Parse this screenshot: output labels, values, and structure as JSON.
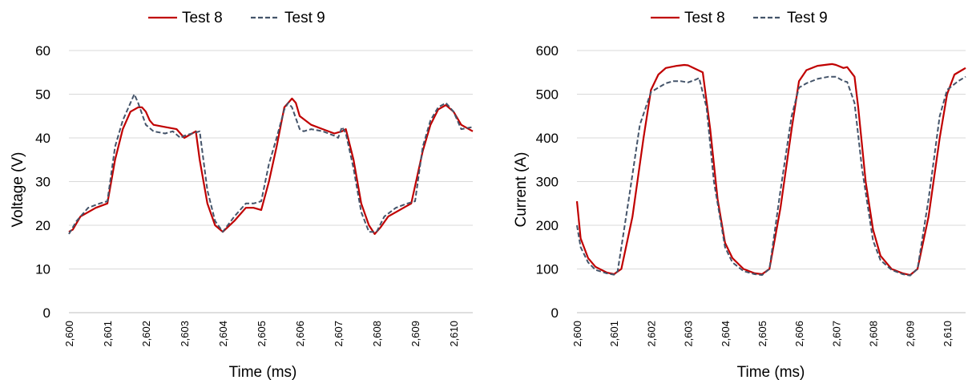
{
  "chart_data": [
    {
      "type": "line",
      "title": "",
      "xlabel": "Time (ms)",
      "ylabel": "Voltage (V)",
      "xlim": [
        2600,
        2610.5
      ],
      "ylim": [
        0,
        60
      ],
      "yticks": [
        "0",
        "10",
        "20",
        "30",
        "40",
        "50",
        "60"
      ],
      "xticks": [
        "2,600",
        "2,601",
        "2,602",
        "2,603",
        "2,604",
        "2,605",
        "2,606",
        "2,607",
        "2,608",
        "2,609",
        "2,610"
      ],
      "grid": true,
      "legend": "top-center",
      "series": [
        {
          "name": "Test 8",
          "color": "#c00000",
          "style": "solid",
          "x": [
            2600.0,
            2600.1,
            2600.3,
            2600.7,
            2601.0,
            2601.2,
            2601.4,
            2601.6,
            2601.8,
            2601.9,
            2602.0,
            2602.1,
            2602.2,
            2602.5,
            2602.8,
            2603.0,
            2603.2,
            2603.3,
            2603.4,
            2603.6,
            2603.8,
            2604.0,
            2604.3,
            2604.6,
            2604.8,
            2605.0,
            2605.2,
            2605.4,
            2605.6,
            2605.8,
            2605.9,
            2606.0,
            2606.3,
            2606.6,
            2606.9,
            2607.1,
            2607.2,
            2607.4,
            2607.6,
            2607.8,
            2607.95,
            2608.1,
            2608.3,
            2608.6,
            2608.9,
            2609.2,
            2609.4,
            2609.6,
            2609.8,
            2610.0,
            2610.2,
            2610.4,
            2610.5
          ],
          "y": [
            18.5,
            19,
            22,
            24,
            25,
            35,
            42,
            46,
            47,
            47,
            46,
            44,
            43,
            42.5,
            42,
            40,
            41,
            41.5,
            35,
            25,
            20,
            18.5,
            21,
            24,
            24,
            23.5,
            30,
            38,
            47,
            49,
            48,
            45,
            43,
            42,
            41,
            41.5,
            42,
            35,
            25,
            20,
            18,
            19.5,
            22,
            23.5,
            25,
            37,
            43,
            46.5,
            47.5,
            46,
            43,
            42,
            41.5
          ]
        },
        {
          "name": "Test 9",
          "color": "#44546a",
          "style": "dashed",
          "x": [
            2600.0,
            2600.2,
            2600.5,
            2600.8,
            2601.0,
            2601.2,
            2601.4,
            2601.6,
            2601.7,
            2601.8,
            2602.0,
            2602.2,
            2602.5,
            2602.7,
            2602.9,
            2603.0,
            2603.2,
            2603.4,
            2603.6,
            2603.8,
            2604.0,
            2604.3,
            2604.6,
            2604.8,
            2605.0,
            2605.2,
            2605.4,
            2605.6,
            2605.7,
            2605.8,
            2606.0,
            2606.1,
            2606.3,
            2606.6,
            2606.9,
            2607.0,
            2607.1,
            2607.2,
            2607.4,
            2607.6,
            2607.8,
            2608.0,
            2608.2,
            2608.5,
            2608.8,
            2609.0,
            2609.2,
            2609.4,
            2609.6,
            2609.8,
            2610.0,
            2610.2,
            2610.5
          ],
          "y": [
            18,
            21,
            24,
            25,
            25.5,
            38,
            44,
            48,
            50,
            48,
            43,
            41.5,
            41,
            41.5,
            40,
            40.5,
            41,
            41.5,
            28,
            21,
            18.5,
            22,
            25,
            25,
            25.5,
            34,
            40,
            46.5,
            48,
            47,
            42,
            41.5,
            42,
            41.5,
            40.5,
            40,
            42.5,
            41,
            33,
            23,
            18.5,
            18.5,
            22,
            24,
            25,
            25.5,
            38,
            44,
            47,
            48,
            46,
            42,
            42.5
          ]
        }
      ]
    },
    {
      "type": "line",
      "title": "",
      "xlabel": "Time (ms)",
      "ylabel": "Current (A)",
      "xlim": [
        2600,
        2610.5
      ],
      "ylim": [
        0,
        600
      ],
      "yticks": [
        "0",
        "100",
        "200",
        "300",
        "400",
        "500",
        "600"
      ],
      "xticks": [
        "2,600",
        "2,601",
        "2,602",
        "2,603",
        "2,604",
        "2,605",
        "2,606",
        "2,607",
        "2,608",
        "2,609",
        "2,610"
      ],
      "grid": true,
      "legend": "top-center",
      "series": [
        {
          "name": "Test 8",
          "color": "#c00000",
          "style": "solid",
          "x": [
            2600.0,
            2600.1,
            2600.3,
            2600.5,
            2600.8,
            2601.0,
            2601.2,
            2601.5,
            2601.8,
            2602.0,
            2602.2,
            2602.4,
            2602.7,
            2602.9,
            2603.0,
            2603.2,
            2603.4,
            2603.6,
            2603.8,
            2604.0,
            2604.2,
            2604.5,
            2604.8,
            2605.0,
            2605.2,
            2605.5,
            2605.8,
            2606.0,
            2606.2,
            2606.5,
            2606.8,
            2606.9,
            2607.0,
            2607.2,
            2607.3,
            2607.5,
            2607.6,
            2607.8,
            2608.0,
            2608.2,
            2608.5,
            2608.8,
            2609.0,
            2609.2,
            2609.5,
            2609.8,
            2610.0,
            2610.2,
            2610.4,
            2610.5
          ],
          "y": [
            255,
            170,
            125,
            105,
            92,
            88,
            100,
            220,
            400,
            510,
            545,
            560,
            565,
            567,
            566,
            558,
            550,
            420,
            260,
            160,
            125,
            100,
            90,
            88,
            100,
            240,
            420,
            530,
            555,
            565,
            568,
            569,
            567,
            560,
            562,
            540,
            470,
            300,
            190,
            130,
            100,
            90,
            86,
            100,
            220,
            400,
            500,
            545,
            555,
            560
          ]
        },
        {
          "name": "Test 9",
          "color": "#44546a",
          "style": "dashed",
          "x": [
            2600.0,
            2600.1,
            2600.3,
            2600.5,
            2600.8,
            2601.0,
            2601.1,
            2601.4,
            2601.7,
            2602.0,
            2602.2,
            2602.4,
            2602.6,
            2602.8,
            2603.0,
            2603.2,
            2603.3,
            2603.5,
            2603.7,
            2604.0,
            2604.2,
            2604.5,
            2604.8,
            2605.0,
            2605.2,
            2605.5,
            2605.8,
            2606.0,
            2606.2,
            2606.5,
            2606.8,
            2607.0,
            2607.2,
            2607.3,
            2607.5,
            2607.7,
            2608.0,
            2608.2,
            2608.5,
            2608.8,
            2609.0,
            2609.2,
            2609.5,
            2609.8,
            2610.0,
            2610.3,
            2610.5
          ],
          "y": [
            200,
            150,
            115,
            98,
            90,
            87,
            95,
            260,
            430,
            505,
            515,
            525,
            530,
            530,
            527,
            533,
            537,
            470,
            300,
            150,
            115,
            95,
            88,
            86,
            100,
            280,
            450,
            515,
            525,
            535,
            540,
            540,
            530,
            528,
            480,
            330,
            165,
            120,
            98,
            88,
            85,
            100,
            260,
            450,
            510,
            530,
            540
          ]
        }
      ]
    }
  ]
}
